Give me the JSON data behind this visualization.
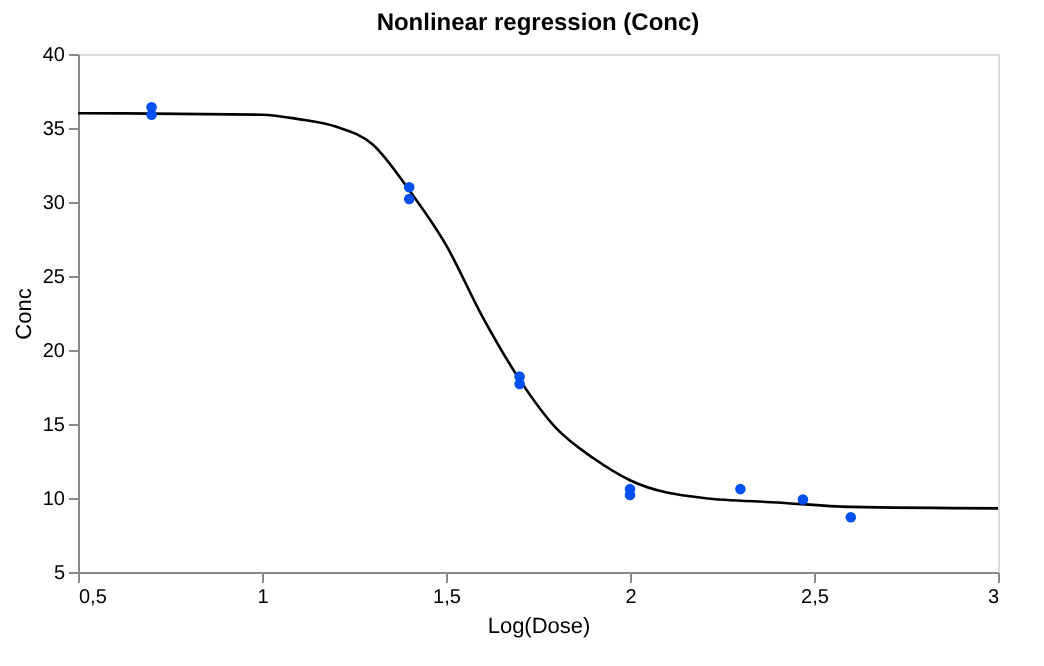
{
  "chart_data": {
    "type": "scatter",
    "title": "Nonlinear regression (Conc)",
    "xlabel": "Log(Dose)",
    "ylabel": "Conc",
    "xlim": [
      0.5,
      3
    ],
    "xticks": [
      {
        "value": 0.5,
        "label": "0,5"
      },
      1,
      {
        "value": 1.5,
        "label": "1,5"
      },
      2,
      {
        "value": 2.5,
        "label": "2,5"
      },
      3
    ],
    "ylim": [
      5,
      40
    ],
    "yticks": [
      5,
      10,
      15,
      20,
      25,
      30,
      35,
      40
    ],
    "grid": false,
    "series": [
      {
        "type": "line",
        "color": "#000000",
        "marker": "none",
        "x": [
          0.5,
          1.0,
          1.1,
          1.2,
          1.3,
          1.4,
          1.5,
          1.6,
          1.7,
          1.8,
          1.9,
          2.0,
          2.2,
          2.4,
          2.6,
          3.0
        ],
        "values": [
          36.0,
          35.9,
          35.6,
          35.1,
          33.9,
          30.8,
          27.1,
          22.2,
          18.0,
          14.7,
          12.7,
          11.2,
          10.0,
          9.7,
          9.4,
          9.3
        ]
      },
      {
        "color": "#0050f0",
        "marker": "circle",
        "x": [
          0.7,
          0.7,
          1.4,
          1.4,
          1.7,
          1.7,
          2.0,
          2.0,
          2.3,
          2.47,
          2.6
        ],
        "values": [
          36.4,
          35.9,
          31.0,
          30.2,
          18.2,
          17.7,
          10.6,
          10.2,
          10.6,
          9.9,
          8.7
        ]
      }
    ]
  }
}
